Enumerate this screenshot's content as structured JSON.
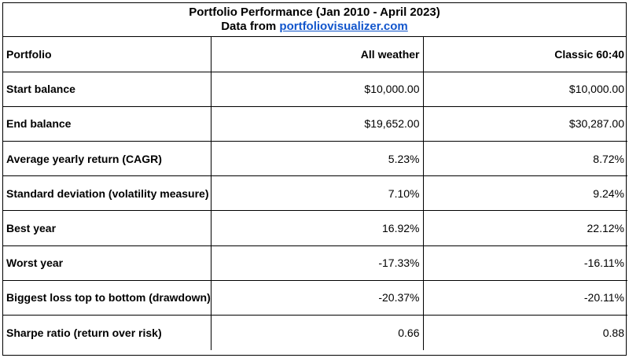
{
  "header": {
    "title": "Portfolio Performance (Jan 2010 - April 2023)",
    "source_prefix": "Data from ",
    "source_link": "portfoliovisualizer.com"
  },
  "table": {
    "columns": [
      "Portfolio",
      "All weather",
      "Classic 60:40"
    ],
    "rows": [
      {
        "label": "Start balance",
        "all_weather": "$10,000.00",
        "classic": "$10,000.00"
      },
      {
        "label": "End balance",
        "all_weather": "$19,652.00",
        "classic": "$30,287.00"
      },
      {
        "label": "Average yearly return (CAGR)",
        "all_weather": "5.23%",
        "classic": "8.72%"
      },
      {
        "label": "Standard deviation (volatility measure)",
        "all_weather": "7.10%",
        "classic": "9.24%"
      },
      {
        "label": "Best year",
        "all_weather": "16.92%",
        "classic": "22.12%"
      },
      {
        "label": "Worst year",
        "all_weather": "-17.33%",
        "classic": "-16.11%"
      },
      {
        "label": "Biggest loss top to bottom (drawdown)",
        "all_weather": "-20.37%",
        "classic": "-20.11%"
      },
      {
        "label": "Sharpe ratio (return over risk)",
        "all_weather": "0.66",
        "classic": "0.88"
      }
    ]
  },
  "colors": {
    "link": "#1155cc",
    "border": "#000000",
    "background": "#ffffff"
  }
}
